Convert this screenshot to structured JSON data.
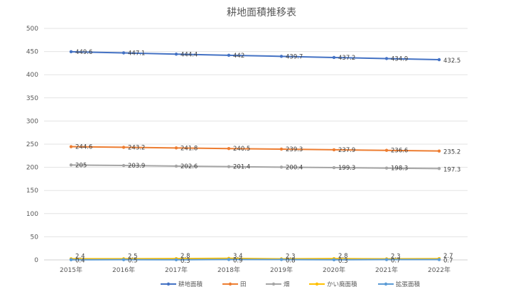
{
  "chart_data": {
    "type": "line",
    "title": "耕地面積推移表",
    "xlabel": "",
    "ylabel": "",
    "categories": [
      "2015年",
      "2016年",
      "2017年",
      "2018年",
      "2019年",
      "2020年",
      "2021年",
      "2022年"
    ],
    "ylim": [
      0,
      500
    ],
    "yticks": [
      0,
      50,
      100,
      150,
      200,
      250,
      300,
      350,
      400,
      450,
      500
    ],
    "grid": true,
    "legend_position": "bottom",
    "series": [
      {
        "name": "耕地面積",
        "color": "#4472C4",
        "values": [
          449.6,
          447.1,
          444.4,
          442,
          439.7,
          437.2,
          434.9,
          432.5
        ],
        "labels": [
          "449.6",
          "447.1",
          "444.4",
          "442",
          "439.7",
          "437.2",
          "434.9",
          "432.5"
        ]
      },
      {
        "name": "田",
        "color": "#ED7D31",
        "values": [
          244.6,
          243.2,
          241.8,
          240.5,
          239.3,
          237.9,
          236.6,
          235.2
        ],
        "labels": [
          "244.6",
          "243.2",
          "241.8",
          "240.5",
          "239.3",
          "237.9",
          "236.6",
          "235.2"
        ]
      },
      {
        "name": "畑",
        "color": "#A5A5A5",
        "values": [
          205,
          203.9,
          202.6,
          201.4,
          200.4,
          199.3,
          198.3,
          197.3
        ],
        "labels": [
          "205",
          "203.9",
          "202.6",
          "201.4",
          "200.4",
          "199.3",
          "198.3",
          "197.3"
        ]
      },
      {
        "name": "かい廃面積",
        "color": "#FFC000",
        "values": [
          2.4,
          2.5,
          2.8,
          3.4,
          2.3,
          2.8,
          2.3,
          2.7
        ],
        "labels": [
          "2.4",
          "2.5",
          "2.8",
          "3.4",
          "2.3",
          "2.8",
          "2.3",
          "2.7"
        ]
      },
      {
        "name": "拡張面積",
        "color": "#5B9BD5",
        "values": [
          0.4,
          0.5,
          0.3,
          0.9,
          0.8,
          0.3,
          0.7,
          0.7
        ],
        "labels": [
          "0.4",
          "0.5",
          "0.3",
          "0.9",
          "0.8",
          "0.3",
          "0.7",
          "0.7"
        ]
      }
    ]
  }
}
